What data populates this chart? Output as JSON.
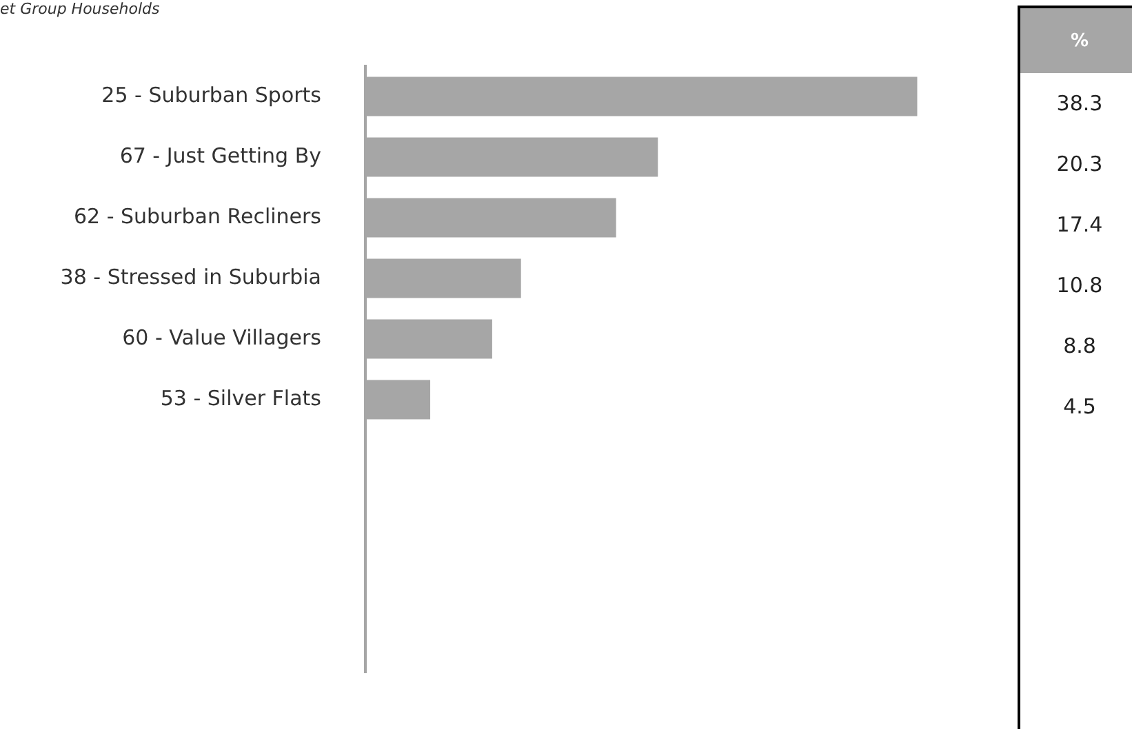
{
  "chart_data": {
    "type": "bar",
    "orientation": "horizontal",
    "title": "et Group Households",
    "categories": [
      "25 - Suburban Sports",
      "67 - Just Getting By",
      "62 - Suburban Recliners",
      "38 - Stressed in Suburbia",
      "60 - Value Villagers",
      "53 - Silver Flats",
      null,
      null,
      null,
      null
    ],
    "values": [
      38.3,
      20.3,
      17.4,
      10.8,
      8.8,
      4.5,
      null,
      null,
      null,
      null
    ],
    "color": "#a6a6a6",
    "data_labels": true,
    "annotations": [
      "%"
    ],
    "grid": false,
    "legend": false,
    "tick_labels": "y"
  }
}
